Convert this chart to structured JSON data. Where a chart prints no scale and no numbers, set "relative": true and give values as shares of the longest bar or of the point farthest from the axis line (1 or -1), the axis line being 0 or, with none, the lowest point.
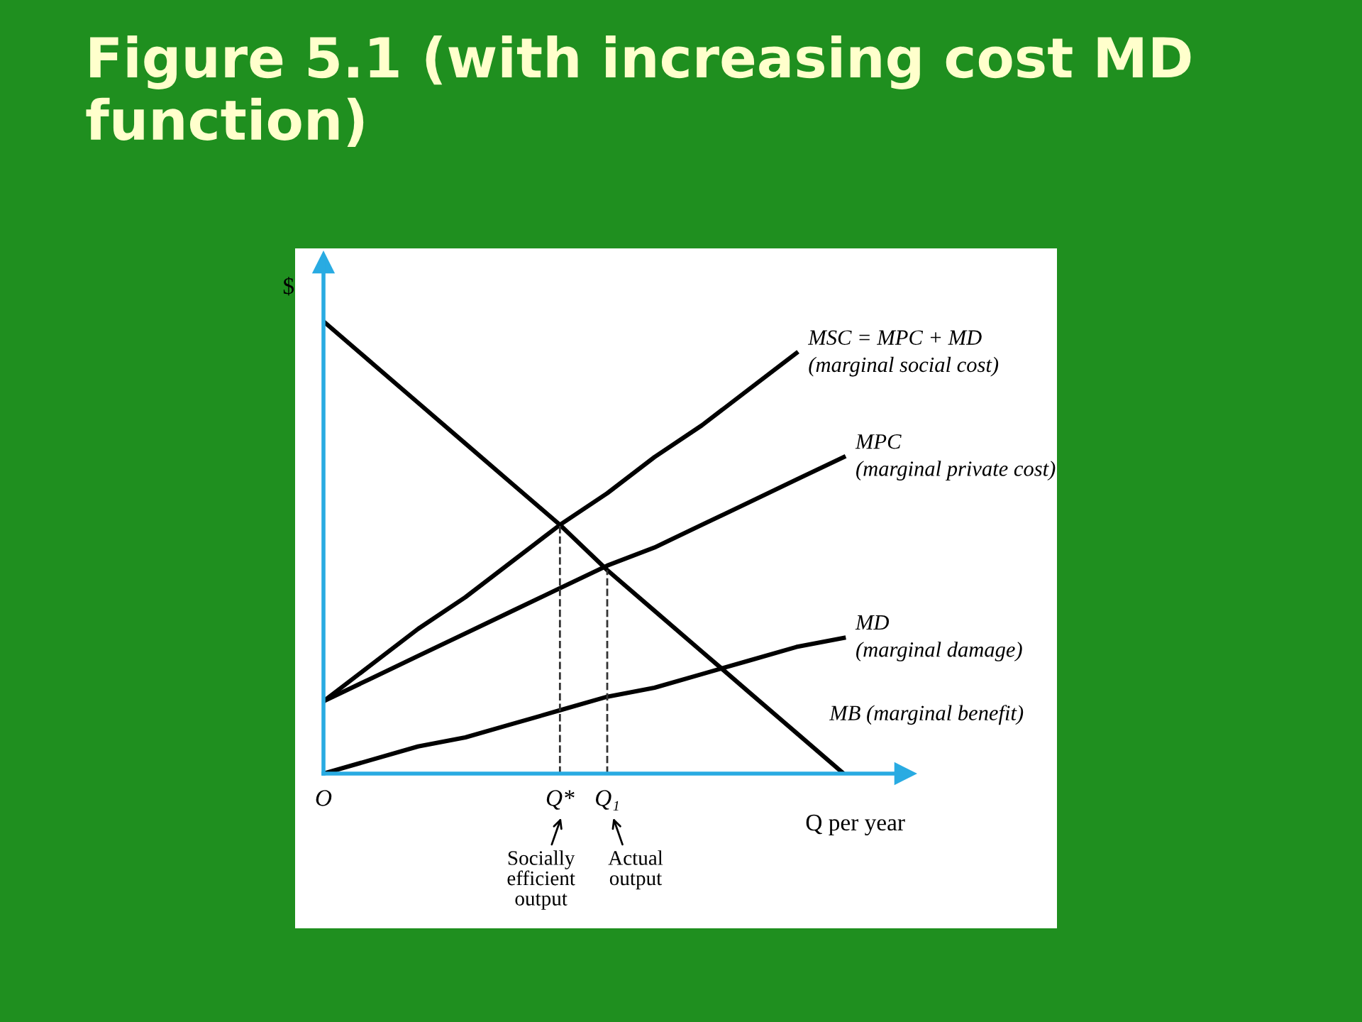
{
  "chart_data": {
    "type": "line",
    "title": "Figure 5.1 (with increasing cost MD function)",
    "relative": true,
    "categories": [
      "O",
      null,
      null,
      null,
      null,
      "Q*",
      "Q₁",
      null,
      null,
      null,
      null,
      null
    ],
    "xlabel": "Q per year",
    "ylabel": "$",
    "series": [
      {
        "name": "MB (marginal benefit)",
        "color": "#000000",
        "values": [
          1,
          0.91,
          0.82,
          0.73,
          0.64,
          0.55,
          0.45,
          0.36,
          0.27,
          0.18,
          0.09,
          0
        ]
      },
      {
        "name": "MSC = MPC + MD\n(marginal social cost)",
        "color": "#000000",
        "values": [
          0.16,
          0.24,
          0.32,
          0.39,
          0.47,
          0.55,
          0.62,
          0.7,
          0.77,
          0.85,
          0.93,
          null
        ]
      },
      {
        "name": "MPC\n(marginal private cost)",
        "color": "#000000",
        "values": [
          0.16,
          0.21,
          0.26,
          0.31,
          0.36,
          0.41,
          0.46,
          0.5,
          0.55,
          0.6,
          0.65,
          0.7
        ]
      },
      {
        "name": "MD\n(marginal damage)",
        "color": "#000000",
        "values": [
          0,
          0.03,
          0.06,
          0.08,
          0.11,
          0.14,
          0.17,
          0.19,
          0.22,
          0.25,
          0.28,
          0.3
        ]
      }
    ],
    "ref_lines": [
      {
        "axis": "x",
        "value": "Q*",
        "line_style": "dashed",
        "color": "#333333"
      },
      {
        "axis": "x",
        "value": "Q₁",
        "line_style": "dashed",
        "color": "#333333"
      }
    ],
    "annotations": [
      "Socially\nefficient\noutput",
      "Actual\noutput"
    ],
    "legend": false,
    "grid": false,
    "marker": "none",
    "line_style": "solid"
  }
}
